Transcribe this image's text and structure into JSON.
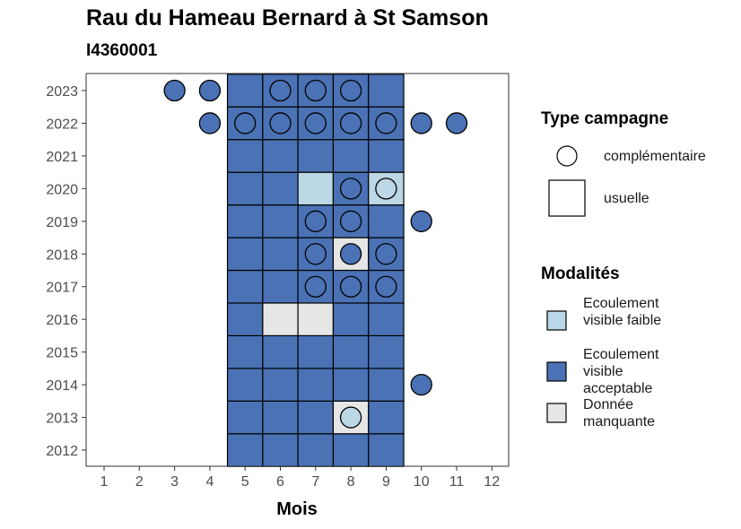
{
  "chart_data": {
    "type": "heatmap",
    "title": "Rau du Hameau Bernard à St Samson",
    "subtitle": "I4360001",
    "xlabel": "Mois",
    "ylabel": "",
    "x_ticks": [
      "1",
      "2",
      "3",
      "4",
      "5",
      "6",
      "7",
      "8",
      "9",
      "10",
      "11",
      "12"
    ],
    "y_ticks": [
      "2012",
      "2013",
      "2014",
      "2015",
      "2016",
      "2017",
      "2018",
      "2019",
      "2020",
      "2021",
      "2022",
      "2023"
    ],
    "colors": {
      "faible": "#bcd7e6",
      "acceptable": "#4a72b5",
      "manquante": "#e6e6e6"
    },
    "legend_type": {
      "title": "Type campagne",
      "complementaire": "complémentaire",
      "usuelle": "usuelle"
    },
    "legend_modalites": {
      "title": "Modalités",
      "faible": "Ecoulement visible faible",
      "acceptable": "Ecoulement visible acceptable",
      "manquante": "Donnée manquante"
    },
    "usuelle": [
      {
        "year": 2012,
        "month": 5,
        "modalite": "acceptable"
      },
      {
        "year": 2012,
        "month": 6,
        "modalite": "acceptable"
      },
      {
        "year": 2012,
        "month": 7,
        "modalite": "acceptable"
      },
      {
        "year": 2012,
        "month": 8,
        "modalite": "acceptable"
      },
      {
        "year": 2012,
        "month": 9,
        "modalite": "acceptable"
      },
      {
        "year": 2013,
        "month": 5,
        "modalite": "acceptable"
      },
      {
        "year": 2013,
        "month": 6,
        "modalite": "acceptable"
      },
      {
        "year": 2013,
        "month": 7,
        "modalite": "acceptable"
      },
      {
        "year": 2013,
        "month": 8,
        "modalite": "manquante"
      },
      {
        "year": 2013,
        "month": 9,
        "modalite": "acceptable"
      },
      {
        "year": 2014,
        "month": 5,
        "modalite": "acceptable"
      },
      {
        "year": 2014,
        "month": 6,
        "modalite": "acceptable"
      },
      {
        "year": 2014,
        "month": 7,
        "modalite": "acceptable"
      },
      {
        "year": 2014,
        "month": 8,
        "modalite": "acceptable"
      },
      {
        "year": 2014,
        "month": 9,
        "modalite": "acceptable"
      },
      {
        "year": 2015,
        "month": 5,
        "modalite": "acceptable"
      },
      {
        "year": 2015,
        "month": 6,
        "modalite": "acceptable"
      },
      {
        "year": 2015,
        "month": 7,
        "modalite": "acceptable"
      },
      {
        "year": 2015,
        "month": 8,
        "modalite": "acceptable"
      },
      {
        "year": 2015,
        "month": 9,
        "modalite": "acceptable"
      },
      {
        "year": 2016,
        "month": 5,
        "modalite": "acceptable"
      },
      {
        "year": 2016,
        "month": 6,
        "modalite": "manquante"
      },
      {
        "year": 2016,
        "month": 7,
        "modalite": "manquante"
      },
      {
        "year": 2016,
        "month": 8,
        "modalite": "acceptable"
      },
      {
        "year": 2016,
        "month": 9,
        "modalite": "acceptable"
      },
      {
        "year": 2017,
        "month": 5,
        "modalite": "acceptable"
      },
      {
        "year": 2017,
        "month": 6,
        "modalite": "acceptable"
      },
      {
        "year": 2017,
        "month": 7,
        "modalite": "acceptable"
      },
      {
        "year": 2017,
        "month": 8,
        "modalite": "acceptable"
      },
      {
        "year": 2017,
        "month": 9,
        "modalite": "acceptable"
      },
      {
        "year": 2018,
        "month": 5,
        "modalite": "acceptable"
      },
      {
        "year": 2018,
        "month": 6,
        "modalite": "acceptable"
      },
      {
        "year": 2018,
        "month": 7,
        "modalite": "acceptable"
      },
      {
        "year": 2018,
        "month": 8,
        "modalite": "manquante"
      },
      {
        "year": 2018,
        "month": 9,
        "modalite": "acceptable"
      },
      {
        "year": 2019,
        "month": 5,
        "modalite": "acceptable"
      },
      {
        "year": 2019,
        "month": 6,
        "modalite": "acceptable"
      },
      {
        "year": 2019,
        "month": 7,
        "modalite": "acceptable"
      },
      {
        "year": 2019,
        "month": 8,
        "modalite": "acceptable"
      },
      {
        "year": 2019,
        "month": 9,
        "modalite": "acceptable"
      },
      {
        "year": 2020,
        "month": 5,
        "modalite": "acceptable"
      },
      {
        "year": 2020,
        "month": 6,
        "modalite": "acceptable"
      },
      {
        "year": 2020,
        "month": 7,
        "modalite": "faible"
      },
      {
        "year": 2020,
        "month": 8,
        "modalite": "acceptable"
      },
      {
        "year": 2020,
        "month": 9,
        "modalite": "faible"
      },
      {
        "year": 2021,
        "month": 5,
        "modalite": "acceptable"
      },
      {
        "year": 2021,
        "month": 6,
        "modalite": "acceptable"
      },
      {
        "year": 2021,
        "month": 7,
        "modalite": "acceptable"
      },
      {
        "year": 2021,
        "month": 8,
        "modalite": "acceptable"
      },
      {
        "year": 2021,
        "month": 9,
        "modalite": "acceptable"
      },
      {
        "year": 2022,
        "month": 5,
        "modalite": "acceptable"
      },
      {
        "year": 2022,
        "month": 6,
        "modalite": "acceptable"
      },
      {
        "year": 2022,
        "month": 7,
        "modalite": "acceptable"
      },
      {
        "year": 2022,
        "month": 8,
        "modalite": "acceptable"
      },
      {
        "year": 2022,
        "month": 9,
        "modalite": "acceptable"
      },
      {
        "year": 2023,
        "month": 5,
        "modalite": "acceptable"
      },
      {
        "year": 2023,
        "month": 6,
        "modalite": "acceptable"
      },
      {
        "year": 2023,
        "month": 7,
        "modalite": "acceptable"
      },
      {
        "year": 2023,
        "month": 8,
        "modalite": "acceptable"
      },
      {
        "year": 2023,
        "month": 9,
        "modalite": "acceptable"
      }
    ],
    "complementaire": [
      {
        "year": 2013,
        "month": 8,
        "modalite": "faible"
      },
      {
        "year": 2014,
        "month": 10,
        "modalite": "acceptable"
      },
      {
        "year": 2017,
        "month": 7,
        "modalite": "acceptable"
      },
      {
        "year": 2017,
        "month": 8,
        "modalite": "acceptable"
      },
      {
        "year": 2017,
        "month": 9,
        "modalite": "acceptable"
      },
      {
        "year": 2018,
        "month": 7,
        "modalite": "acceptable"
      },
      {
        "year": 2018,
        "month": 8,
        "modalite": "acceptable"
      },
      {
        "year": 2018,
        "month": 9,
        "modalite": "acceptable"
      },
      {
        "year": 2019,
        "month": 7,
        "modalite": "acceptable"
      },
      {
        "year": 2019,
        "month": 8,
        "modalite": "acceptable"
      },
      {
        "year": 2019,
        "month": 10,
        "modalite": "acceptable"
      },
      {
        "year": 2020,
        "month": 8,
        "modalite": "acceptable"
      },
      {
        "year": 2020,
        "month": 9,
        "modalite": "faible"
      },
      {
        "year": 2022,
        "month": 4,
        "modalite": "acceptable"
      },
      {
        "year": 2022,
        "month": 5,
        "modalite": "acceptable"
      },
      {
        "year": 2022,
        "month": 6,
        "modalite": "acceptable"
      },
      {
        "year": 2022,
        "month": 7,
        "modalite": "acceptable"
      },
      {
        "year": 2022,
        "month": 8,
        "modalite": "acceptable"
      },
      {
        "year": 2022,
        "month": 9,
        "modalite": "acceptable"
      },
      {
        "year": 2022,
        "month": 10,
        "modalite": "acceptable"
      },
      {
        "year": 2022,
        "month": 11,
        "modalite": "acceptable"
      },
      {
        "year": 2023,
        "month": 3,
        "modalite": "acceptable"
      },
      {
        "year": 2023,
        "month": 4,
        "modalite": "acceptable"
      },
      {
        "year": 2023,
        "month": 6,
        "modalite": "acceptable"
      },
      {
        "year": 2023,
        "month": 7,
        "modalite": "acceptable"
      },
      {
        "year": 2023,
        "month": 8,
        "modalite": "acceptable"
      }
    ]
  }
}
